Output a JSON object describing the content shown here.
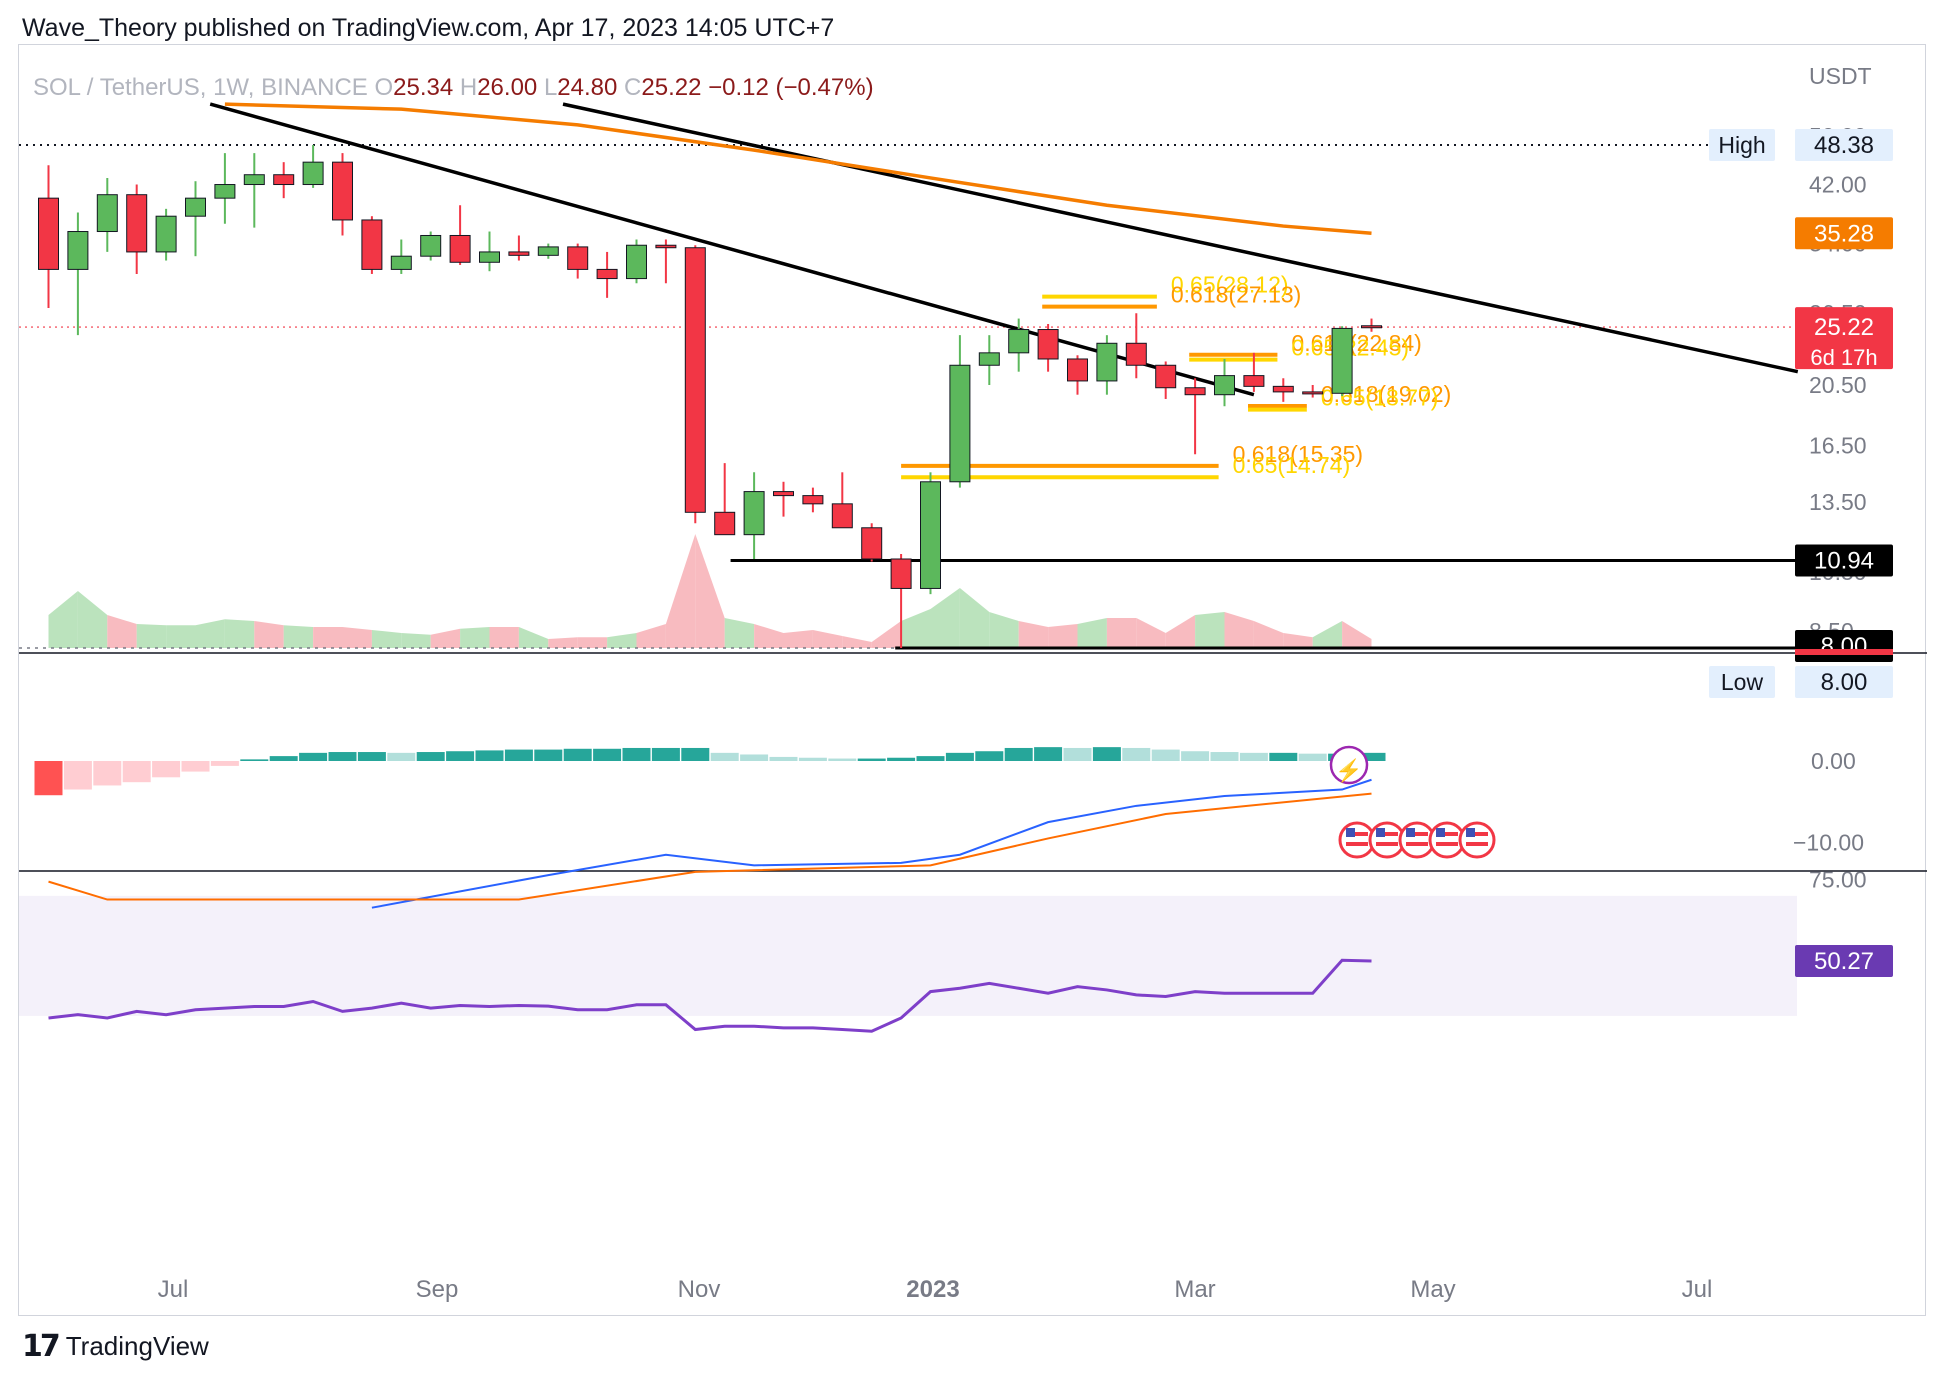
{
  "header": {
    "publisher_line": "Wave_Theory published on TradingView.com, Apr 17, 2023 14:05 UTC+7"
  },
  "footer": {
    "logo_text": "TradingView"
  },
  "legend": {
    "symbol": "SOL / TetherUS, 1W, BINANCE",
    "open_label": "O",
    "open": "25.34",
    "high_label": "H",
    "high": "26.00",
    "low_label": "L",
    "low": "24.80",
    "close_label": "C",
    "close": "25.22",
    "change": "−0.12 (−0.47%)"
  },
  "colors": {
    "bull": "#5cb85c",
    "bear": "#f23645",
    "ma": "#f57c00",
    "fib_orange": "#ff9800",
    "fib_yellow": "#ffd600",
    "macd_line": "#2962ff",
    "signal_line": "#ff6d00",
    "rsi": "#7e3fc9",
    "hist_strong_pos": "#26a69a",
    "hist_weak_pos": "#b2dfdb",
    "hist_strong_neg": "#ff5252",
    "hist_weak_neg": "#ffcdd2"
  },
  "icons": [
    "lightning-icon",
    "us-flag-icon"
  ],
  "chart_data": [
    {
      "type": "candlestick",
      "title": "SOL / TetherUS, 1W, BINANCE",
      "currency": "USDT",
      "x_ticks": [
        "Jul",
        "Sep",
        "Nov",
        "2023",
        "Mar",
        "May",
        "Jul"
      ],
      "y_ticks": [
        "50.00",
        "42.00",
        "34.00",
        "26.50",
        "20.50",
        "16.50",
        "13.50",
        "10.50",
        "8.50"
      ],
      "scale": "log",
      "candles": [
        {
          "o": 40.0,
          "h": 45.0,
          "l": 27.0,
          "c": 31.0
        },
        {
          "o": 31.0,
          "h": 38.0,
          "l": 24.5,
          "c": 35.5
        },
        {
          "o": 35.5,
          "h": 43.0,
          "l": 33.0,
          "c": 40.5
        },
        {
          "o": 40.5,
          "h": 42.0,
          "l": 30.5,
          "c": 33.0
        },
        {
          "o": 33.0,
          "h": 38.5,
          "l": 32.0,
          "c": 37.5
        },
        {
          "o": 37.5,
          "h": 42.5,
          "l": 32.5,
          "c": 40.0
        },
        {
          "o": 40.0,
          "h": 47.0,
          "l": 36.5,
          "c": 42.0
        },
        {
          "o": 42.0,
          "h": 47.0,
          "l": 36.0,
          "c": 43.5
        },
        {
          "o": 43.5,
          "h": 45.5,
          "l": 40.0,
          "c": 42.0
        },
        {
          "o": 42.0,
          "h": 48.38,
          "l": 41.5,
          "c": 45.5
        },
        {
          "o": 45.5,
          "h": 47.0,
          "l": 35.0,
          "c": 37.0
        },
        {
          "o": 37.0,
          "h": 37.5,
          "l": 30.5,
          "c": 31.0
        },
        {
          "o": 31.0,
          "h": 34.5,
          "l": 30.5,
          "c": 32.5
        },
        {
          "o": 32.5,
          "h": 35.5,
          "l": 32.0,
          "c": 35.0
        },
        {
          "o": 35.0,
          "h": 39.0,
          "l": 31.5,
          "c": 31.8
        },
        {
          "o": 31.8,
          "h": 35.5,
          "l": 30.8,
          "c": 33.0
        },
        {
          "o": 33.0,
          "h": 35.0,
          "l": 32.0,
          "c": 32.6
        },
        {
          "o": 32.6,
          "h": 34.0,
          "l": 32.2,
          "c": 33.6
        },
        {
          "o": 33.6,
          "h": 34.0,
          "l": 30.0,
          "c": 31.0
        },
        {
          "o": 31.0,
          "h": 33.0,
          "l": 28.0,
          "c": 30.0
        },
        {
          "o": 30.0,
          "h": 34.5,
          "l": 29.5,
          "c": 33.8
        },
        {
          "o": 33.8,
          "h": 34.5,
          "l": 29.5,
          "c": 33.5
        },
        {
          "o": 33.5,
          "h": 33.8,
          "l": 12.5,
          "c": 13.0
        },
        {
          "o": 13.0,
          "h": 15.5,
          "l": 12.0,
          "c": 12.0
        },
        {
          "o": 12.0,
          "h": 15.0,
          "l": 11.0,
          "c": 14.0
        },
        {
          "o": 14.0,
          "h": 14.5,
          "l": 12.8,
          "c": 13.8
        },
        {
          "o": 13.8,
          "h": 14.2,
          "l": 13.0,
          "c": 13.4
        },
        {
          "o": 13.4,
          "h": 15.0,
          "l": 12.3,
          "c": 12.3
        },
        {
          "o": 12.3,
          "h": 12.5,
          "l": 10.9,
          "c": 11.0
        },
        {
          "o": 11.0,
          "h": 11.2,
          "l": 8.0,
          "c": 9.9
        },
        {
          "o": 9.9,
          "h": 15.0,
          "l": 9.7,
          "c": 14.5
        },
        {
          "o": 14.5,
          "h": 24.5,
          "l": 14.2,
          "c": 22.0
        },
        {
          "o": 22.0,
          "h": 24.5,
          "l": 20.5,
          "c": 23.0
        },
        {
          "o": 23.0,
          "h": 26.0,
          "l": 21.5,
          "c": 25.0
        },
        {
          "o": 25.0,
          "h": 25.5,
          "l": 21.5,
          "c": 22.5
        },
        {
          "o": 22.5,
          "h": 22.8,
          "l": 19.8,
          "c": 20.8
        },
        {
          "o": 20.8,
          "h": 24.5,
          "l": 19.8,
          "c": 23.8
        },
        {
          "o": 23.8,
          "h": 26.5,
          "l": 21.0,
          "c": 22.0
        },
        {
          "o": 22.0,
          "h": 22.3,
          "l": 19.5,
          "c": 20.3
        },
        {
          "o": 20.3,
          "h": 21.0,
          "l": 16.0,
          "c": 19.8
        },
        {
          "o": 19.8,
          "h": 22.5,
          "l": 19.0,
          "c": 21.2
        },
        {
          "o": 21.2,
          "h": 23.0,
          "l": 20.0,
          "c": 20.4
        },
        {
          "o": 20.4,
          "h": 21.0,
          "l": 19.3,
          "c": 20.0
        },
        {
          "o": 20.0,
          "h": 20.5,
          "l": 19.6,
          "c": 19.9
        },
        {
          "o": 19.9,
          "h": 25.3,
          "l": 19.7,
          "c": 25.1
        },
        {
          "o": 25.34,
          "h": 26.0,
          "l": 24.8,
          "c": 25.22
        }
      ],
      "volume_relative": [
        0.55,
        0.95,
        0.55,
        0.4,
        0.38,
        0.38,
        0.48,
        0.45,
        0.38,
        0.35,
        0.35,
        0.3,
        0.25,
        0.22,
        0.32,
        0.35,
        0.35,
        0.15,
        0.18,
        0.18,
        0.25,
        0.4,
        1.9,
        0.5,
        0.4,
        0.25,
        0.3,
        0.2,
        0.1,
        0.45,
        0.65,
        1.0,
        0.6,
        0.45,
        0.35,
        0.4,
        0.5,
        0.5,
        0.25,
        0.55,
        0.6,
        0.45,
        0.25,
        0.18,
        0.45,
        0.15
      ],
      "ema_200": [
        {
          "x": 6,
          "y": 56
        },
        {
          "x": 12,
          "y": 55
        },
        {
          "x": 18,
          "y": 52
        },
        {
          "x": 24,
          "y": 47.5
        },
        {
          "x": 30,
          "y": 43
        },
        {
          "x": 36,
          "y": 39
        },
        {
          "x": 42,
          "y": 36.2
        },
        {
          "x": 45,
          "y": 35.28
        }
      ],
      "trendlines": [
        {
          "from": {
            "x": 5.5,
            "y": 56
          },
          "to": {
            "x": 41,
            "y": 19.8
          }
        },
        {
          "from": {
            "x": 17.5,
            "y": 56
          },
          "to": {
            "x": 59.5,
            "y": 21.5
          }
        }
      ],
      "horizontal_levels": [
        {
          "value": 10.94,
          "from_x": 23.2,
          "label": "10.94"
        },
        {
          "value": 8.0,
          "from_x": 28.8,
          "label": "8.00"
        }
      ],
      "high_line": {
        "value": 48.38,
        "label": "High",
        "value_label": "48.38"
      },
      "low_label": {
        "value": 8.0,
        "label": "Low",
        "value_label": "8.00"
      },
      "current_price": {
        "value": 25.22,
        "label": "25.22",
        "countdown": "6d 17h"
      },
      "ema_label": "35.28",
      "fib_levels": [
        {
          "label": "0.65(28.12)",
          "value": 28.12,
          "color": "yellow",
          "x_from": 33.8,
          "x_to": 37.7
        },
        {
          "label": "0.618(27.13)",
          "value": 27.13,
          "color": "orange",
          "x_from": 33.8,
          "x_to": 37.7
        },
        {
          "label": "0.618(22.84)",
          "value": 22.84,
          "color": "orange",
          "x_from": 38.8,
          "x_to": 41.8
        },
        {
          "label": "0.65(22.45)",
          "value": 22.45,
          "color": "yellow",
          "x_from": 38.8,
          "x_to": 41.8
        },
        {
          "label": "0.618(19.02)",
          "value": 19.02,
          "color": "orange",
          "x_from": 40.8,
          "x_to": 42.8
        },
        {
          "label": "0.65(18.77)",
          "value": 18.77,
          "color": "yellow",
          "x_from": 40.8,
          "x_to": 42.8
        },
        {
          "label": "0.618(15.35)",
          "value": 15.35,
          "color": "orange",
          "x_from": 29.0,
          "x_to": 39.8
        },
        {
          "label": "0.65(14.74)",
          "value": 14.74,
          "color": "yellow",
          "x_from": 29.0,
          "x_to": 39.8
        }
      ]
    },
    {
      "type": "bar",
      "title": "MACD",
      "y_ticks": [
        "0.00",
        "−10.00"
      ],
      "histogram": [
        -4.2,
        -3.5,
        -3.0,
        -2.6,
        -2.0,
        -1.3,
        -0.6,
        0.2,
        0.6,
        1.0,
        1.1,
        1.1,
        1.0,
        1.1,
        1.2,
        1.3,
        1.4,
        1.4,
        1.5,
        1.5,
        1.6,
        1.6,
        1.6,
        1.0,
        0.8,
        0.5,
        0.4,
        0.3,
        0.3,
        0.4,
        0.6,
        1.0,
        1.2,
        1.6,
        1.7,
        1.6,
        1.7,
        1.6,
        1.4,
        1.2,
        1.1,
        1.0,
        1.0,
        0.9,
        0.9,
        1.0
      ],
      "macd_line": [
        {
          "x": 11,
          "y": -18
        },
        {
          "x": 17,
          "y": -14
        },
        {
          "x": 21,
          "y": -11.5
        },
        {
          "x": 24,
          "y": -12.8
        },
        {
          "x": 29,
          "y": -12.5
        },
        {
          "x": 31,
          "y": -11.5
        },
        {
          "x": 34,
          "y": -7.5
        },
        {
          "x": 37,
          "y": -5.5
        },
        {
          "x": 40,
          "y": -4.3
        },
        {
          "x": 44,
          "y": -3.5
        },
        {
          "x": 45,
          "y": -2.3
        }
      ],
      "signal_line": [
        {
          "x": 0,
          "y": -14.8
        },
        {
          "x": 2,
          "y": -17
        },
        {
          "x": 16,
          "y": -17
        },
        {
          "x": 22,
          "y": -13.6
        },
        {
          "x": 30,
          "y": -12.8
        },
        {
          "x": 34,
          "y": -9.5
        },
        {
          "x": 38,
          "y": -6.5
        },
        {
          "x": 45,
          "y": -4.0
        }
      ]
    },
    {
      "type": "line",
      "title": "RSI",
      "y_ticks": [
        "75.00"
      ],
      "current_label": "50.27",
      "series": [
        {
          "values": [
            33,
            34,
            33,
            35,
            34,
            35.5,
            36,
            36.5,
            36.5,
            38,
            35,
            36,
            37.5,
            36,
            36.8,
            36.5,
            36.8,
            36.6,
            35.5,
            35.5,
            37,
            37,
            29.5,
            30.5,
            30.5,
            30,
            30,
            29.5,
            29,
            33,
            41,
            42,
            43.5,
            42,
            40.5,
            42.5,
            41.5,
            40,
            39.5,
            41,
            40.5,
            40.5,
            40.5,
            40.5,
            50.5,
            50.27
          ]
        }
      ]
    }
  ]
}
